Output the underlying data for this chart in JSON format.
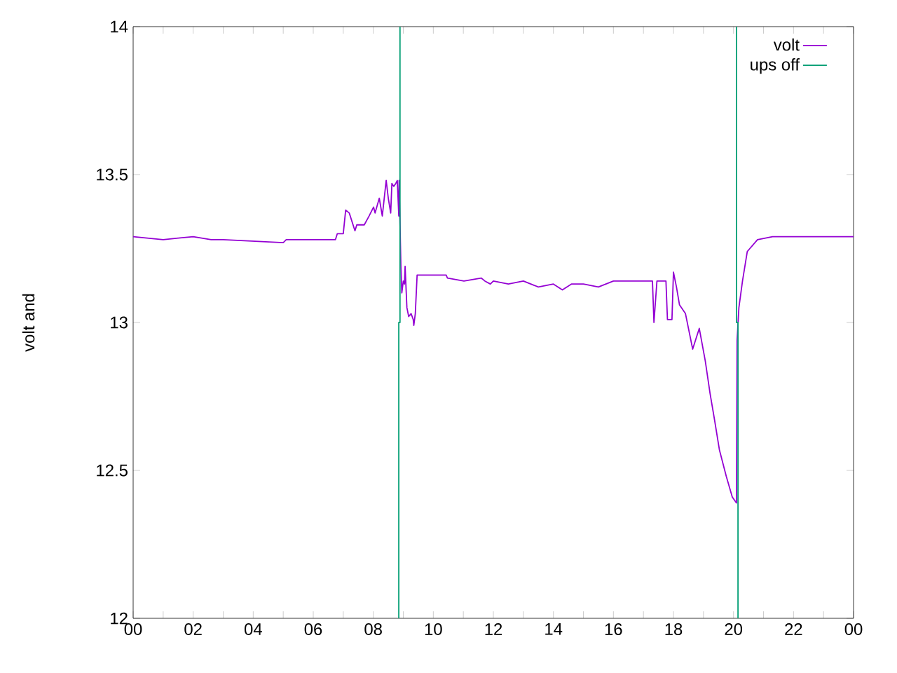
{
  "chart_data": {
    "type": "line",
    "ylabel": "volt and",
    "xlim": [
      0,
      24
    ],
    "ylim": [
      12,
      14
    ],
    "xticks": [
      {
        "value": 0,
        "label": "00"
      },
      {
        "value": 1,
        "label": null
      },
      {
        "value": 2,
        "label": "02"
      },
      {
        "value": 3,
        "label": null
      },
      {
        "value": 4,
        "label": "04"
      },
      {
        "value": 5,
        "label": null
      },
      {
        "value": 6,
        "label": "06"
      },
      {
        "value": 7,
        "label": null
      },
      {
        "value": 8,
        "label": "08"
      },
      {
        "value": 9,
        "label": null
      },
      {
        "value": 10,
        "label": "10"
      },
      {
        "value": 11,
        "label": null
      },
      {
        "value": 12,
        "label": "12"
      },
      {
        "value": 13,
        "label": null
      },
      {
        "value": 14,
        "label": "14"
      },
      {
        "value": 15,
        "label": null
      },
      {
        "value": 16,
        "label": "16"
      },
      {
        "value": 17,
        "label": null
      },
      {
        "value": 18,
        "label": "18"
      },
      {
        "value": 19,
        "label": null
      },
      {
        "value": 20,
        "label": "20"
      },
      {
        "value": 21,
        "label": null
      },
      {
        "value": 22,
        "label": "22"
      },
      {
        "value": 23,
        "label": null
      },
      {
        "value": 24,
        "label": "00"
      }
    ],
    "yticks": [
      12,
      12.5,
      13,
      13.5,
      14
    ],
    "grid": false,
    "legend": "top right",
    "marker": "none",
    "line_style": "solid",
    "series": [
      {
        "name": "volt",
        "color": "#9400d3",
        "x": [
          0,
          1,
          1.5,
          2,
          2.6,
          3,
          5.0,
          5.1,
          6.3,
          6.74,
          6.8,
          7.0,
          7.08,
          7.2,
          7.39,
          7.45,
          7.7,
          7.86,
          8.01,
          8.06,
          8.2,
          8.3,
          8.43,
          8.5,
          8.58,
          8.62,
          8.68,
          8.75,
          8.8,
          8.85,
          8.86,
          8.92,
          8.95,
          9.0,
          9.04,
          9.06,
          9.12,
          9.18,
          9.26,
          9.33,
          9.35,
          9.4,
          9.46,
          10.43,
          10.47,
          11.02,
          11.6,
          11.72,
          11.9,
          12,
          12.5,
          13,
          13.5,
          14,
          14.3,
          14.6,
          15,
          15.5,
          16,
          17.3,
          17.35,
          17.45,
          17.75,
          17.8,
          17.95,
          18.0,
          18.1,
          18.2,
          18.4,
          18.64,
          18.86,
          19.06,
          19.22,
          19.37,
          19.53,
          19.76,
          19.96,
          20.1,
          20.12,
          20.18,
          20.3,
          20.46,
          20.8,
          21.3,
          24
        ],
        "values": [
          13.29,
          13.28,
          13.285,
          13.29,
          13.28,
          13.28,
          13.27,
          13.28,
          13.28,
          13.28,
          13.3,
          13.3,
          13.38,
          13.37,
          13.31,
          13.33,
          13.33,
          13.36,
          13.39,
          13.37,
          13.42,
          13.36,
          13.48,
          13.42,
          13.37,
          13.47,
          13.46,
          13.47,
          13.48,
          13.36,
          13.48,
          13.19,
          13.1,
          13.14,
          13.13,
          13.19,
          13.05,
          13.02,
          13.03,
          13.01,
          12.99,
          13.03,
          13.16,
          13.16,
          13.15,
          13.14,
          13.15,
          13.14,
          13.13,
          13.14,
          13.13,
          13.14,
          13.12,
          13.13,
          13.11,
          13.13,
          13.13,
          13.12,
          13.14,
          13.14,
          13.0,
          13.14,
          13.14,
          13.01,
          13.01,
          13.17,
          13.12,
          13.06,
          13.03,
          12.91,
          12.98,
          12.87,
          12.76,
          12.67,
          12.57,
          12.48,
          12.41,
          12.39,
          12.94,
          13.05,
          13.14,
          13.24,
          13.28,
          13.29,
          13.29
        ]
      },
      {
        "name": "ups off",
        "color": "#009e73",
        "x": [
          8.85,
          8.85,
          8.89,
          8.89,
          15,
          20.1,
          20.1,
          20.15,
          20.15
        ],
        "values": [
          12,
          13,
          13,
          14,
          null,
          14,
          13,
          13,
          12
        ]
      }
    ]
  }
}
